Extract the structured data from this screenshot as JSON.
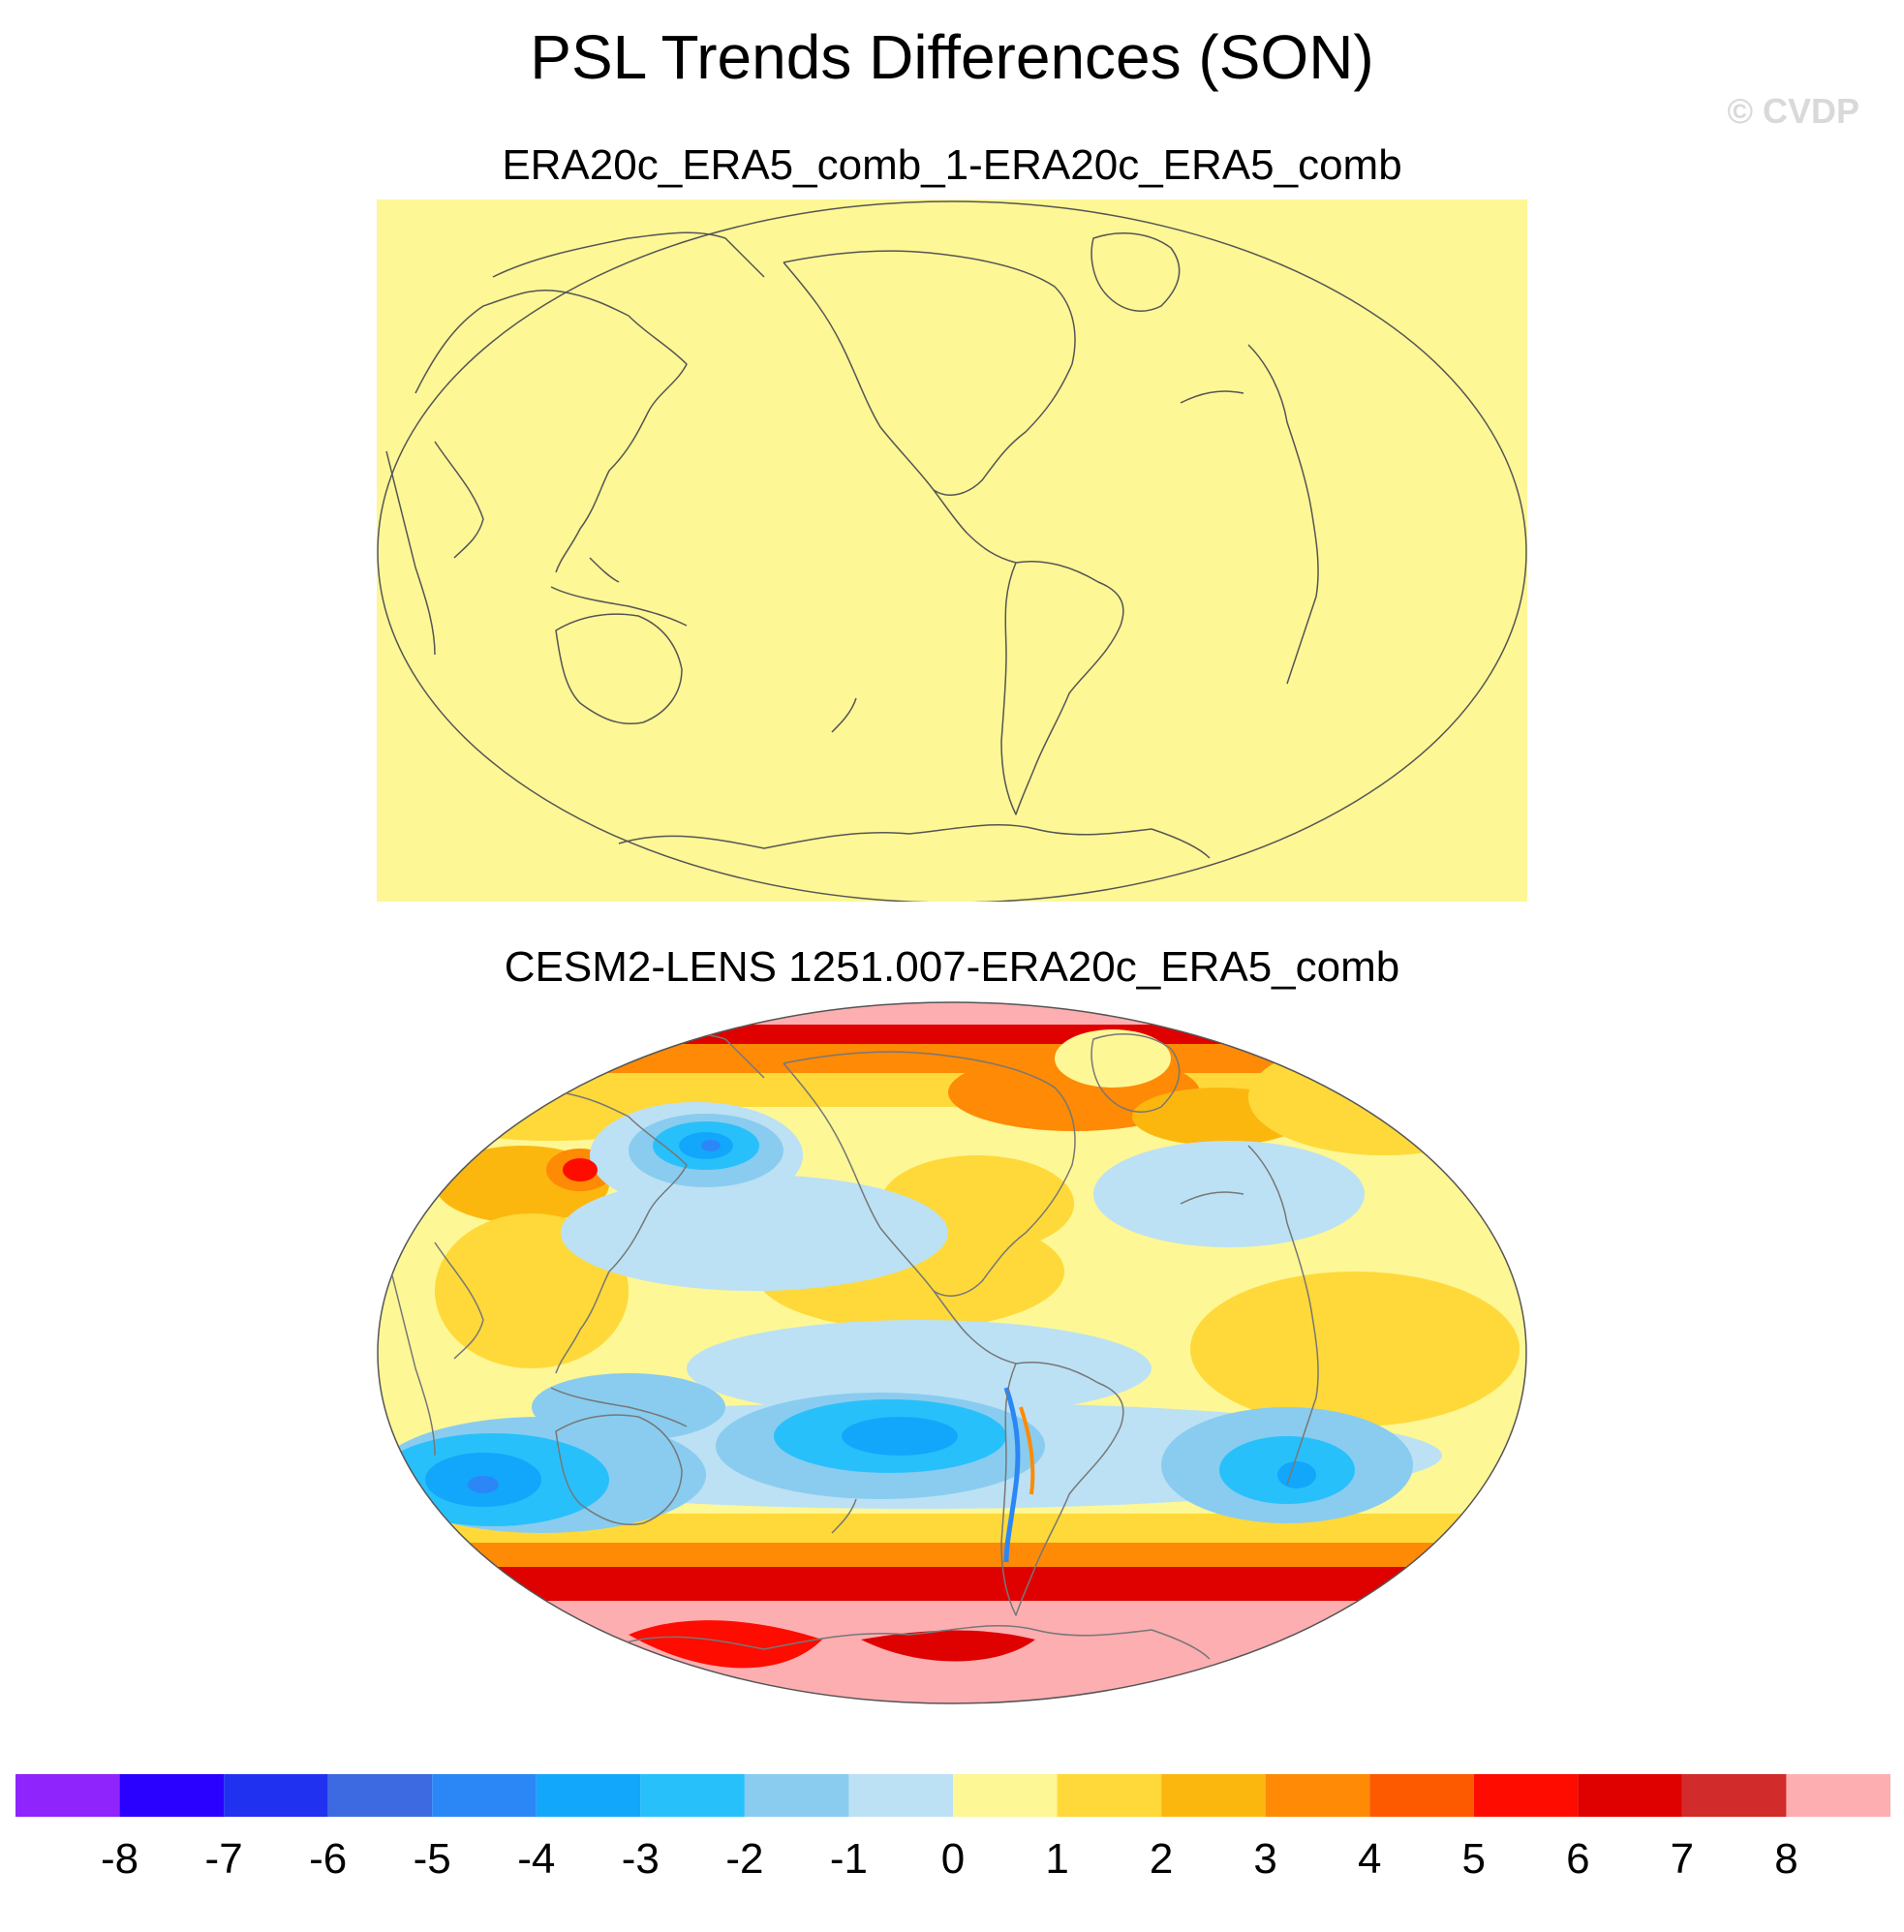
{
  "title": "PSL Trends Differences (SON)",
  "watermark": "© CVDP",
  "panels": [
    {
      "title": "ERA20c_ERA5_comb_1-ERA20c_ERA5_comb",
      "fill_color": "#fdf796"
    },
    {
      "title": "CESM2-LENS 1251.007-ERA20c_ERA5_comb"
    }
  ],
  "colorbar": {
    "colors": [
      "#8f25fc",
      "#2a00fe",
      "#2131f0",
      "#3d6ae0",
      "#2b87f6",
      "#12a7fb",
      "#28c0fb",
      "#89ccef",
      "#bce1f4",
      "#fdf796",
      "#fed939",
      "#fcb70f",
      "#fe8a06",
      "#fd5a00",
      "#fe0c00",
      "#df0000",
      "#d12b2b",
      "#fcaeb1"
    ],
    "labels": [
      "-8",
      "-7",
      "-6",
      "-5",
      "-4",
      "-3",
      "-2",
      "-1",
      "0",
      "1",
      "2",
      "3",
      "4",
      "5",
      "6",
      "7",
      "8"
    ]
  }
}
